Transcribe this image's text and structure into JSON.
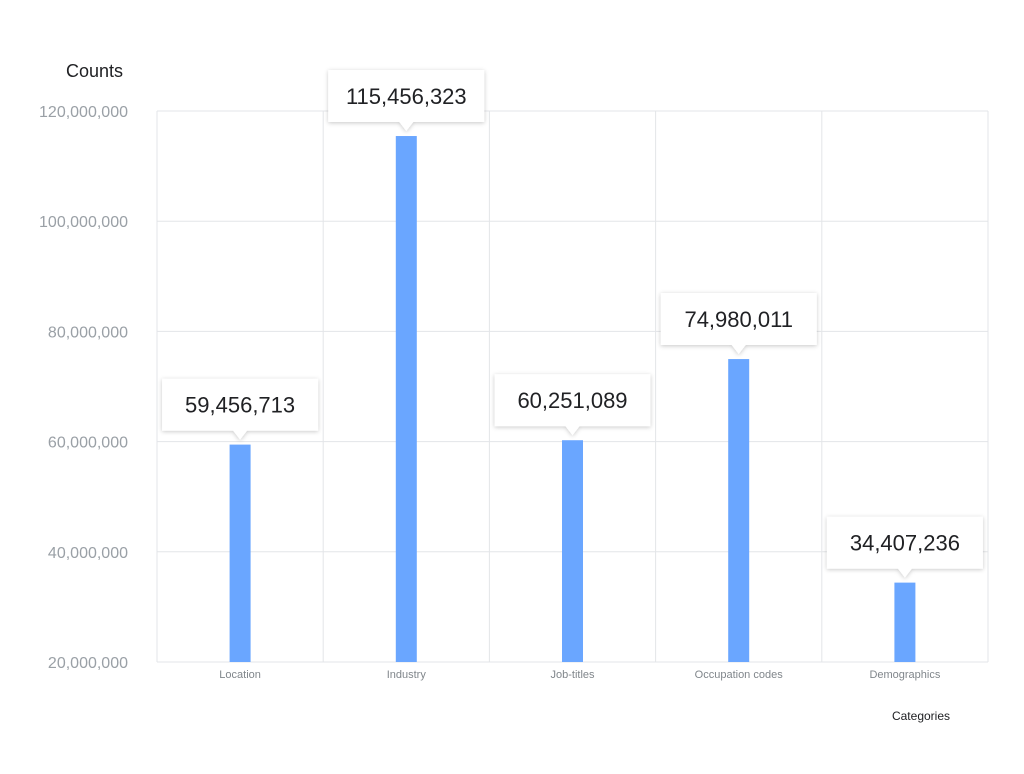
{
  "chart_data": {
    "type": "bar",
    "ylabel": "Counts",
    "xlabel": "Categories",
    "ylim": [
      20000000,
      120000000
    ],
    "yticks": [
      20000000,
      40000000,
      60000000,
      80000000,
      100000000,
      120000000
    ],
    "ytick_labels": [
      "20,000,000",
      "40,000,000",
      "60,000,000",
      "80,000,000",
      "100,000,000",
      "120,000,000"
    ],
    "categories": [
      "Location",
      "Industry",
      "Job-titles",
      "Occupation codes",
      "Demographics"
    ],
    "values": [
      59456713,
      115456323,
      60251089,
      74980011,
      34407236
    ],
    "data_labels": [
      "59,456,713",
      "115,456,323",
      "60,251,089",
      "74,980,011",
      "34,407,236"
    ],
    "grid": true,
    "bar_color": "#6aa6ff",
    "grid_color": "#e3e5e8"
  }
}
